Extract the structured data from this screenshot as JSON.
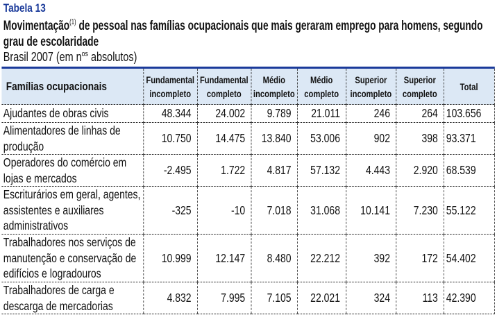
{
  "table_number": "Tabela 13",
  "title": {
    "main_start": "Movimentação",
    "footnote": "(1)",
    "main_end": " de pessoal nas famílias ocupacionais que mais geraram emprego para homens, segundo grau de escolaridade"
  },
  "subtitle": {
    "start": "Brasil 2007 (em n",
    "sup": "os",
    "end": " absolutos)"
  },
  "columns": [
    [
      "Famílias ocupacionais"
    ],
    [
      "Fundamental",
      "incompleto"
    ],
    [
      "Fundamental",
      "completo"
    ],
    [
      "Médio",
      "incompleto"
    ],
    [
      "Médio",
      "completo"
    ],
    [
      "Superior",
      "incompleto"
    ],
    [
      "Superior",
      "completo"
    ],
    [
      "Total"
    ]
  ],
  "rows": [
    {
      "label": "Ajudantes de obras civis",
      "values": [
        "48.344",
        "24.002",
        "9.789",
        "21.011",
        "246",
        "264",
        "103.656"
      ]
    },
    {
      "label": "Alimentadores de linhas de produção",
      "values": [
        "10.750",
        "14.475",
        "13.840",
        "53.006",
        "902",
        "398",
        "93.371"
      ]
    },
    {
      "label": "Operadores do comércio em lojas e mercados",
      "values": [
        "-2.495",
        "1.722",
        "4.817",
        "57.132",
        "4.443",
        "2.920",
        "68.539"
      ]
    },
    {
      "label": "Escriturários em geral, agentes, assistentes e auxiliares administrativos",
      "values": [
        "-325",
        "-10",
        "7.018",
        "31.068",
        "10.141",
        "7.230",
        "55.122"
      ]
    },
    {
      "label": "Trabalhadores nos serviços de manutenção e conservação de edifícios e logradouros",
      "values": [
        "10.999",
        "12.147",
        "8.480",
        "22.212",
        "392",
        "172",
        "54.402"
      ]
    },
    {
      "label": "Trabalhadores de carga e descarga de mercadorias",
      "values": [
        "4.832",
        "7.995",
        "7.105",
        "22.021",
        "324",
        "113",
        "42.390"
      ]
    }
  ],
  "colors": {
    "accent": "#1a3a9a",
    "header_bg": "#dce8f5"
  }
}
